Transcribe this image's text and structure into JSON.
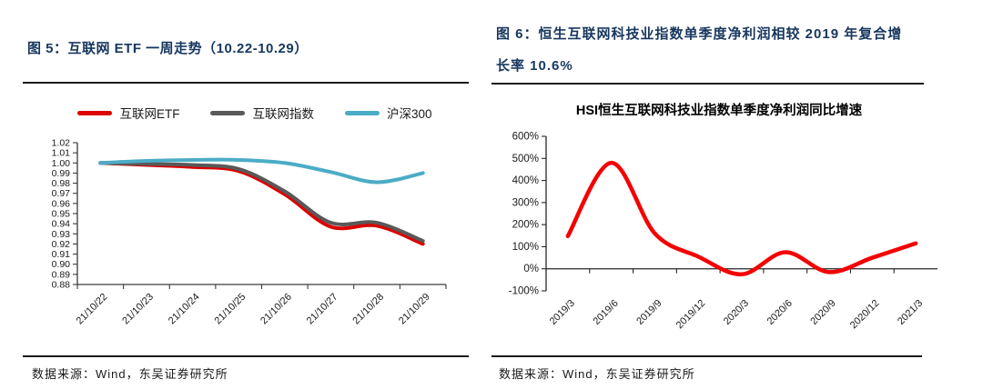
{
  "page": {
    "background": "#ffffff"
  },
  "left_panel": {
    "title": "图 5：互联网 ETF 一周走势（10.22-10.29）",
    "source": "数据来源：Wind，东吴证券研究所"
  },
  "right_panel": {
    "title_line1": "图 6：恒生互联网科技业指数单季度净利润相较 2019 年复合增",
    "title_line2": "长率 10.6%",
    "source": "数据来源：Wind，东吴证券研究所"
  },
  "colors": {
    "title_navy": "#17375e",
    "etf_red": "#dc0000",
    "index_gray": "#595959",
    "hs300_blue": "#4bacc6",
    "hsi_red": "#f50000",
    "axis": "#3a3a3a"
  },
  "chart_data": [
    {
      "type": "line",
      "title": "",
      "categories": [
        "21/10/22",
        "21/10/23",
        "21/10/24",
        "21/10/25",
        "21/10/26",
        "21/10/27",
        "21/10/28",
        "21/10/29"
      ],
      "series": [
        {
          "name": "互联网ETF",
          "color": "#dc0000",
          "values": [
            1.0,
            0.998,
            0.996,
            0.992,
            0.969,
            0.937,
            0.938,
            0.92
          ]
        },
        {
          "name": "互联网指数",
          "color": "#595959",
          "values": [
            1.0,
            0.999,
            0.998,
            0.994,
            0.972,
            0.941,
            0.941,
            0.923
          ]
        },
        {
          "name": "沪深300",
          "color": "#4bacc6",
          "values": [
            1.0,
            1.002,
            1.003,
            1.003,
            1.0,
            0.991,
            0.981,
            0.99
          ]
        }
      ],
      "ylim": [
        0.88,
        1.02
      ],
      "ytick_step": 0.01,
      "ytick_labels": [
        "1.02",
        "1.01",
        "1.00",
        "0.99",
        "0.98",
        "0.97",
        "0.96",
        "0.95",
        "0.94",
        "0.93",
        "0.92",
        "0.91",
        "0.90",
        "0.89",
        "0.88"
      ],
      "legend_position": "top",
      "grid": false,
      "smooth": true
    },
    {
      "type": "line",
      "title": "HSI恒生互联网科技业指数单季度净利润同比增速",
      "categories": [
        "2019/3",
        "2019/6",
        "2019/9",
        "2019/12",
        "2020/3",
        "2020/6",
        "2020/9",
        "2020/12",
        "2021/3"
      ],
      "series": [
        {
          "name": "HSI恒生互联网科技业指数单季度净利润同比增速",
          "color": "#f50000",
          "values": [
            148,
            480,
            160,
            55,
            -25,
            75,
            -15,
            50,
            115
          ]
        }
      ],
      "ylim": [
        -100,
        600
      ],
      "ytick_step": 100,
      "ytick_labels": [
        "600%",
        "500%",
        "400%",
        "300%",
        "200%",
        "100%",
        "0%",
        "-100%"
      ],
      "x_axis_at": 0,
      "legend_position": "none",
      "grid": false,
      "smooth": true
    }
  ]
}
